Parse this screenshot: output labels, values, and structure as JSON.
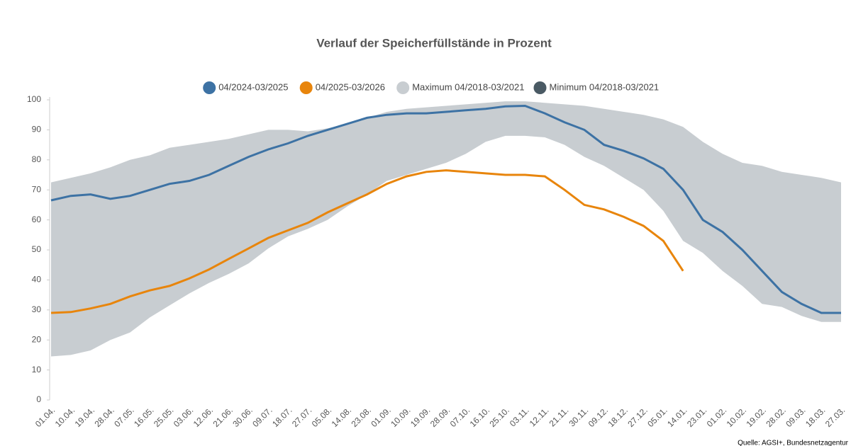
{
  "chart_data": {
    "type": "line",
    "title": "Verlauf der Speicherfüllstände in Prozent",
    "source": "Quelle: AGSI+, Bundesnetzagentur",
    "categories": [
      "01.04.",
      "10.04.",
      "19.04.",
      "28.04.",
      "07.05.",
      "16.05.",
      "25.05.",
      "03.06.",
      "12.06.",
      "21.06.",
      "30.06.",
      "09.07.",
      "18.07.",
      "27.07.",
      "05.08.",
      "14.08.",
      "23.08.",
      "01.09.",
      "10.09.",
      "19.09.",
      "28.09.",
      "07.10.",
      "16.10.",
      "25.10.",
      "03.11.",
      "12.11.",
      "21.11.",
      "30.11.",
      "09.12.",
      "18.12.",
      "27.12.",
      "05.01.",
      "14.01.",
      "23.01.",
      "01.02.",
      "10.02.",
      "19.02.",
      "28.02.",
      "09.03.",
      "18.03.",
      "27.03."
    ],
    "series": [
      {
        "name": "04/2024-03/2025",
        "color": "#3d72a4",
        "values": [
          66.5,
          68,
          68.5,
          67,
          68,
          70,
          72,
          73,
          75,
          78,
          81,
          83.5,
          85.5,
          88,
          90,
          92,
          94,
          95,
          95.5,
          95.5,
          96,
          96.5,
          97,
          97.8,
          98,
          95.5,
          92.5,
          90,
          85,
          83,
          80.5,
          77,
          70,
          60,
          56,
          50,
          43,
          36,
          32,
          29,
          29
        ]
      },
      {
        "name": "04/2025-03/2026",
        "color": "#e8850c",
        "values": [
          29,
          29.3,
          30.5,
          32,
          34.5,
          36.5,
          38,
          40.5,
          43.5,
          47,
          50.5,
          54,
          56.5,
          59,
          62.5,
          65.5,
          68.5,
          72,
          74.5,
          76,
          76.5,
          76,
          75.5,
          75,
          75,
          74.5,
          70,
          65,
          63.5,
          61,
          58,
          53,
          43,
          null,
          null,
          null,
          null,
          null,
          null,
          null,
          null
        ]
      },
      {
        "name": "Maximum 04/2018-03/2021",
        "color": "#c8cdd1",
        "values": [
          72.5,
          74,
          75.5,
          77.5,
          80,
          81.5,
          84,
          85,
          86,
          87,
          88.5,
          90,
          90,
          89.5,
          90.5,
          92,
          94,
          96,
          97,
          97.5,
          98,
          98.5,
          99,
          99.5,
          99.5,
          99,
          98.5,
          98,
          97,
          96,
          95,
          93.5,
          91,
          86,
          82,
          79,
          78,
          76,
          75,
          74,
          72.5
        ]
      },
      {
        "name": "Minimum 04/2018-03/2021",
        "color": "#4a5a64",
        "values": [
          14.5,
          15,
          16.5,
          20,
          22.5,
          27.5,
          31.5,
          35.5,
          39,
          42,
          45.5,
          50.5,
          54.5,
          57,
          60,
          64.5,
          68.5,
          73,
          75,
          77,
          79,
          82,
          86,
          88,
          88,
          87.5,
          85,
          81,
          78,
          74,
          70,
          63,
          53,
          49,
          43,
          38,
          32,
          31,
          28,
          26,
          26
        ]
      }
    ],
    "ylim": [
      0,
      100
    ],
    "yticks": [
      0,
      10,
      20,
      30,
      40,
      50,
      60,
      70,
      80,
      90,
      100
    ]
  }
}
